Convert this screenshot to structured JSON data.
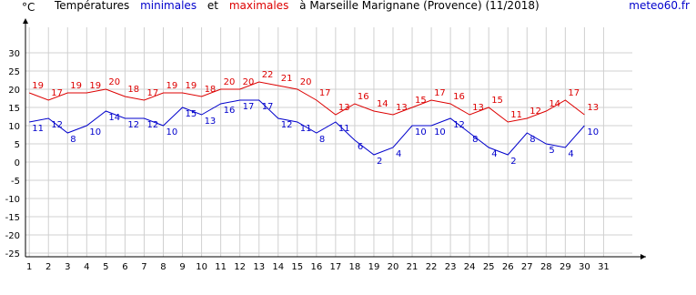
{
  "chart_data": {
    "type": "line",
    "title_start": "Températures",
    "title_mid": "et",
    "title_end": "à Marseille Marignane (Provence) (11/2018)",
    "y_unit": "°C",
    "source": "meteo60.fr",
    "x": [
      1,
      2,
      3,
      4,
      5,
      6,
      7,
      8,
      9,
      10,
      11,
      12,
      13,
      14,
      15,
      16,
      17,
      18,
      19,
      20,
      21,
      22,
      23,
      24,
      25,
      26,
      27,
      28,
      29,
      30
    ],
    "xlim": [
      0.8,
      32.5
    ],
    "xticks": [
      1,
      2,
      3,
      4,
      5,
      6,
      7,
      8,
      9,
      10,
      11,
      12,
      13,
      14,
      15,
      16,
      17,
      18,
      19,
      20,
      21,
      22,
      23,
      24,
      25,
      26,
      27,
      28,
      29,
      30,
      31
    ],
    "ylim": [
      -26,
      37
    ],
    "yticks": [
      -25,
      -20,
      -15,
      -10,
      -5,
      0,
      5,
      10,
      15,
      20,
      25,
      30
    ],
    "grid": true,
    "series": [
      {
        "name": "minimales",
        "color": "#0000cc",
        "values": [
          11,
          12,
          8,
          10,
          14,
          12,
          12,
          10,
          15,
          13,
          16,
          17,
          17,
          12,
          11,
          8,
          11,
          6,
          2,
          4,
          10,
          10,
          12,
          8,
          4,
          2,
          8,
          5,
          4,
          10
        ]
      },
      {
        "name": "maximales",
        "color": "#dd0000",
        "values": [
          19,
          17,
          19,
          19,
          20,
          18,
          17,
          19,
          19,
          18,
          20,
          20,
          22,
          21,
          20,
          17,
          13,
          16,
          14,
          13,
          15,
          17,
          16,
          13,
          15,
          11,
          12,
          14,
          17,
          13
        ]
      }
    ]
  }
}
